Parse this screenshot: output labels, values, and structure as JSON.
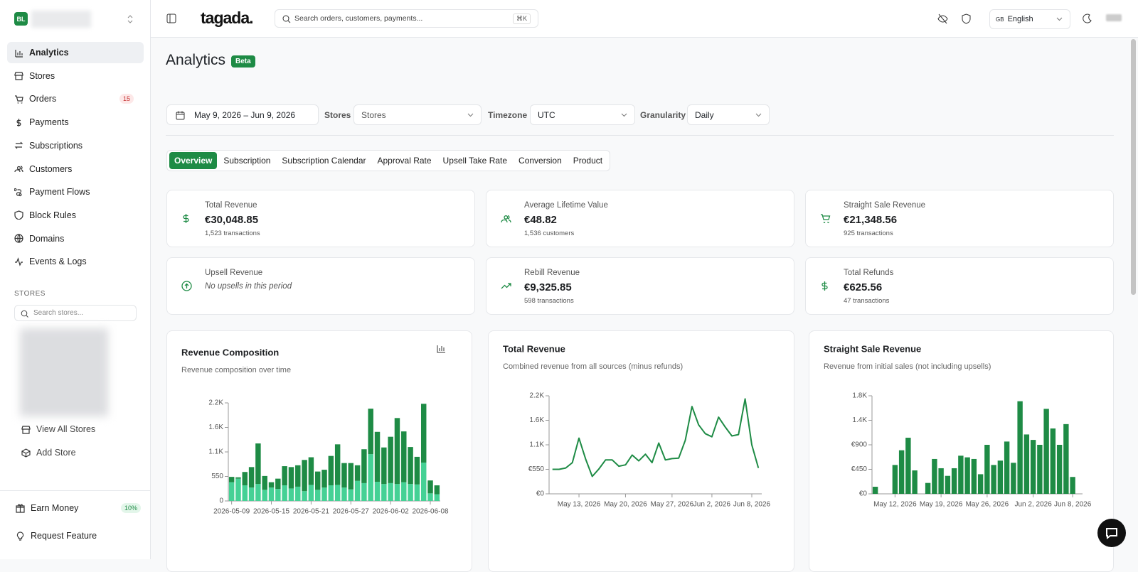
{
  "sidebar": {
    "avatar": "BL",
    "nav": [
      {
        "label": "Analytics"
      },
      {
        "label": "Stores"
      },
      {
        "label": "Orders",
        "badge": "15"
      },
      {
        "label": "Payments"
      },
      {
        "label": "Subscriptions"
      },
      {
        "label": "Customers"
      },
      {
        "label": "Payment Flows"
      },
      {
        "label": "Block Rules"
      },
      {
        "label": "Domains"
      },
      {
        "label": "Events & Logs"
      }
    ],
    "stores_heading": "STORES",
    "store_search_placeholder": "Search stores...",
    "store_links": [
      "View All Stores",
      "Add Store"
    ],
    "footer": [
      {
        "label": "Earn Money",
        "badge": "10%"
      },
      {
        "label": "Request Feature"
      }
    ]
  },
  "header": {
    "logo": "tagada.",
    "search_placeholder": "Search orders, customers, payments...",
    "shortcut": "⌘K",
    "language_flag": "GB",
    "language": "English"
  },
  "page": {
    "title": "Analytics",
    "badge": "Beta"
  },
  "filters": {
    "date_range": "May 9, 2026 – Jun 9, 2026",
    "stores_label": "Stores",
    "stores_value": "Stores",
    "timezone_label": "Timezone",
    "timezone_value": "UTC",
    "granularity_label": "Granularity",
    "granularity_value": "Daily"
  },
  "tabs": [
    "Overview",
    "Subscription",
    "Subscription Calendar",
    "Approval Rate",
    "Upsell Take Rate",
    "Conversion",
    "Product"
  ],
  "kpis": [
    {
      "label": "Total Revenue",
      "value": "€30,048.85",
      "sub": "1,523 transactions"
    },
    {
      "label": "Average Lifetime Value",
      "value": "€48.82",
      "sub": "1,536 customers"
    },
    {
      "label": "Straight Sale Revenue",
      "value": "€21,348.56",
      "sub": "925 transactions"
    },
    {
      "label": "Upsell Revenue",
      "note": "No upsells in this period"
    },
    {
      "label": "Rebill Revenue",
      "value": "€9,325.85",
      "sub": "598 transactions"
    },
    {
      "label": "Total Refunds",
      "value": "€625.56",
      "sub": "47 transactions"
    }
  ],
  "chart_data": [
    {
      "type": "bar",
      "stacked": true,
      "title": "Revenue Composition",
      "subtitle": "Revenue composition over time",
      "categories": [
        "2026-05-09",
        null,
        null,
        null,
        null,
        null,
        "2026-05-15",
        null,
        null,
        null,
        null,
        null,
        "2026-05-21",
        null,
        null,
        null,
        null,
        null,
        "2026-05-27",
        null,
        null,
        null,
        null,
        null,
        "2026-06-02",
        null,
        null,
        null,
        null,
        null,
        "2026-06-08",
        null
      ],
      "series": [
        {
          "color": "#45d195",
          "values": [
            420,
            500,
            350,
            300,
            380,
            250,
            300,
            270,
            350,
            280,
            320,
            220,
            360,
            250,
            300,
            350,
            360,
            300,
            260,
            450,
            400,
            1050,
            430,
            380,
            400,
            380,
            420,
            380,
            370,
            860,
            170,
            150
          ]
        },
        {
          "color": "#1e8b45",
          "values": [
            120,
            30,
            300,
            460,
            910,
            310,
            120,
            230,
            430,
            480,
            480,
            700,
            620,
            410,
            400,
            660,
            910,
            550,
            590,
            350,
            760,
            1020,
            1120,
            820,
            1040,
            1480,
            1140,
            830,
            620,
            1320,
            290,
            200
          ]
        }
      ],
      "ylim": [
        0,
        2200
      ],
      "yticks": [
        0,
        550,
        {
          "value": 1100,
          "label": "1.1K"
        },
        {
          "value": 1650,
          "label": "1.6K"
        },
        {
          "value": 2200,
          "label": "2.2K"
        }
      ]
    },
    {
      "type": "line",
      "title": "Total Revenue",
      "subtitle": "Combined revenue from all sources (minus refunds)",
      "color": "#1e8b45",
      "categories": [
        null,
        null,
        null,
        null,
        "May 13, 2026",
        null,
        null,
        null,
        null,
        null,
        null,
        "May 20, 2026",
        null,
        null,
        null,
        null,
        null,
        null,
        "May 27, 2026",
        null,
        null,
        null,
        null,
        null,
        "Jun 2, 2026",
        null,
        null,
        null,
        null,
        null,
        "Jun 8, 2026",
        null
      ],
      "values": [
        550,
        550,
        580,
        700,
        1250,
        780,
        390,
        560,
        760,
        760,
        620,
        650,
        870,
        740,
        890,
        700,
        1140,
        760,
        790,
        800,
        1200,
        1960,
        1550,
        1350,
        1280,
        1720,
        1500,
        1300,
        1330,
        2130,
        1100,
        580
      ],
      "ylim": [
        0,
        2200
      ],
      "yticks": [
        {
          "value": 0,
          "label": "€0"
        },
        {
          "value": 550,
          "label": "€550"
        },
        {
          "value": 1100,
          "label": "1.1K"
        },
        {
          "value": 1650,
          "label": "1.6K"
        },
        {
          "value": 2200,
          "label": "2.2K"
        }
      ]
    },
    {
      "type": "bar",
      "title": "Straight Sale Revenue",
      "subtitle": "Revenue from initial sales (not including upsells)",
      "color": "#1e8b45",
      "categories": [
        null,
        null,
        null,
        "May 12, 2026",
        null,
        null,
        null,
        null,
        null,
        null,
        "May 19, 2026",
        null,
        null,
        null,
        null,
        null,
        null,
        "May 26, 2026",
        null,
        null,
        null,
        null,
        null,
        null,
        "Jun 2, 2026",
        null,
        null,
        null,
        null,
        null,
        "Jun 8, 2026",
        null
      ],
      "values": [
        130,
        0,
        0,
        530,
        800,
        1030,
        430,
        0,
        200,
        640,
        470,
        330,
        470,
        700,
        670,
        640,
        360,
        900,
        530,
        610,
        960,
        570,
        1700,
        1090,
        990,
        900,
        1560,
        1200,
        900,
        1280,
        310,
        0
      ],
      "ylim": [
        0,
        1800
      ],
      "yticks": [
        {
          "value": 0,
          "label": "€0"
        },
        {
          "value": 450,
          "label": "€450"
        },
        {
          "value": 900,
          "label": "€900"
        },
        {
          "value": 1350,
          "label": "1.4K"
        },
        {
          "value": 1800,
          "label": "1.8K"
        }
      ]
    }
  ]
}
